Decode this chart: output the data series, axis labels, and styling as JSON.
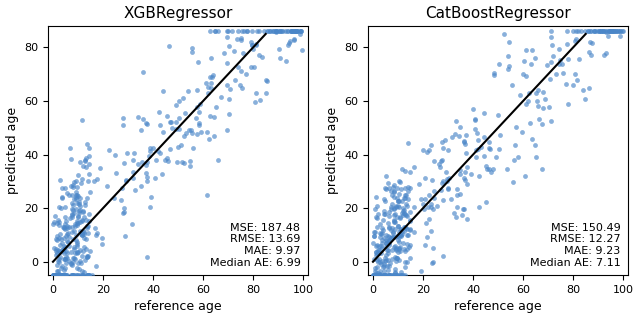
{
  "titles": [
    "XGBRegressor",
    "CatBoostRegressor"
  ],
  "xlabel": "reference age",
  "ylabel": "predicted age",
  "xlim": [
    -2,
    102
  ],
  "ylim": [
    -5,
    88
  ],
  "xticks": [
    0,
    20,
    40,
    60,
    80,
    100
  ],
  "yticks": [
    0,
    20,
    40,
    60,
    80
  ],
  "scatter_color": "#4a86c8",
  "scatter_alpha": 0.65,
  "scatter_size": 12,
  "line_color": "black",
  "line_width": 1.5,
  "metrics": [
    {
      "MSE": "187.48",
      "RMSE": "13.69",
      "MAE": "9.97",
      "Median AE": "6.99"
    },
    {
      "MSE": "150.49",
      "RMSE": "12.27",
      "MAE": "9.23",
      "Median AE": "7.11"
    }
  ],
  "n_points": 500,
  "figsize": [
    6.4,
    3.19
  ],
  "dpi": 100,
  "metrics_fontsize": 8,
  "title_fontsize": 11,
  "label_fontsize": 9,
  "tick_fontsize": 8
}
